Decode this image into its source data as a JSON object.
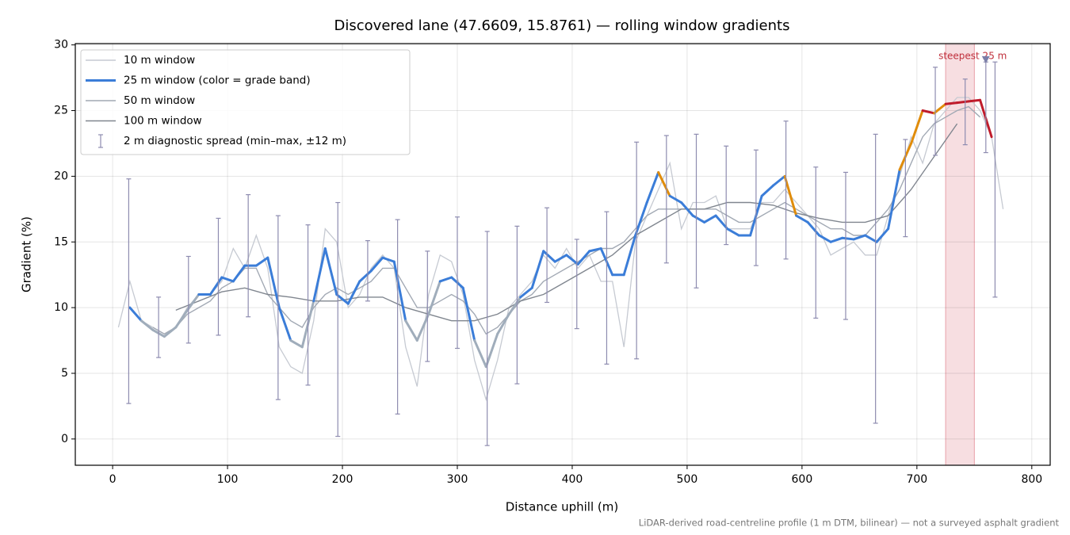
{
  "chart_data": {
    "type": "line",
    "title": "Discovered lane (47.6609, 15.8761) — rolling window gradients",
    "x_label": "Distance uphill (m)",
    "y_label": "Gradient (%)",
    "footnote": "LiDAR-derived road-centreline profile (1 m DTM, bilinear) — not a surveyed asphalt gradient",
    "xlim": [
      -32.5,
      816
    ],
    "ylim": [
      -2,
      30.1
    ],
    "xticks": [
      0,
      100,
      200,
      300,
      400,
      500,
      600,
      700,
      800
    ],
    "yticks": [
      0,
      5,
      10,
      15,
      20,
      25,
      30
    ],
    "grid": true,
    "legend": "upper left",
    "series": [
      {
        "name": "10 m window",
        "color": "#c6cad2",
        "x": [
          5,
          15,
          25,
          35,
          45,
          55,
          65,
          75,
          85,
          95,
          105,
          115,
          125,
          135,
          145,
          155,
          165,
          175,
          185,
          195,
          205,
          215,
          225,
          235,
          245,
          255,
          265,
          275,
          285,
          295,
          305,
          315,
          325,
          335,
          345,
          355,
          365,
          375,
          385,
          395,
          405,
          415,
          425,
          435,
          445,
          455,
          465,
          475,
          485,
          495,
          505,
          515,
          525,
          535,
          545,
          555,
          565,
          575,
          585,
          595,
          605,
          615,
          625,
          635,
          645,
          655,
          665,
          675,
          685,
          695,
          705,
          715,
          725,
          735,
          745,
          755,
          765,
          775
        ],
        "values": [
          8.5,
          12,
          9,
          8.5,
          8,
          8.5,
          10,
          11,
          11,
          12,
          14.5,
          13,
          15.5,
          13,
          7,
          5.5,
          5,
          9,
          16,
          15,
          10,
          11,
          13,
          14,
          13,
          7,
          4,
          11,
          14,
          13.5,
          11,
          6,
          3,
          6,
          10,
          11,
          12,
          14,
          13,
          14.5,
          13,
          14,
          12,
          12,
          7,
          15,
          17,
          19,
          21,
          16,
          18,
          18,
          18.5,
          16,
          16,
          16,
          18,
          18,
          19,
          18,
          17,
          16,
          14,
          14.5,
          15,
          14,
          14,
          17,
          20,
          23,
          21,
          24,
          25,
          26,
          26,
          25,
          23,
          17.5
        ]
      },
      {
        "name": "25 m window (color = grade band)",
        "color": "#3b7dd8",
        "x": [
          15,
          25,
          35,
          45,
          55,
          65,
          75,
          85,
          95,
          105,
          115,
          125,
          135,
          145,
          155,
          165,
          175,
          185,
          195,
          205,
          215,
          225,
          235,
          245,
          255,
          265,
          275,
          285,
          295,
          305,
          315,
          325,
          335,
          345,
          355,
          365,
          375,
          385,
          395,
          405,
          415,
          425,
          435,
          445,
          455,
          465,
          475,
          485,
          495,
          505,
          515,
          525,
          535,
          545,
          555,
          565,
          575,
          585,
          595,
          605,
          615,
          625,
          635,
          645,
          655,
          665,
          675,
          685,
          695,
          705,
          715,
          725,
          735,
          745,
          755,
          765
        ],
        "values": [
          10,
          9,
          8.3,
          7.8,
          8.5,
          9.8,
          11,
          11,
          12.3,
          12,
          13.2,
          13.2,
          13.8,
          10,
          7.5,
          7,
          10.5,
          14.5,
          11,
          10.3,
          12,
          12.8,
          13.8,
          13.5,
          9,
          7.5,
          9.5,
          12,
          12.3,
          11.5,
          7.5,
          5.5,
          8,
          9.5,
          10.8,
          11.5,
          14.3,
          13.5,
          14,
          13.3,
          14.3,
          14.5,
          12.5,
          12.5,
          15.5,
          18,
          20.3,
          18.5,
          18,
          17,
          16.5,
          17,
          16,
          15.5,
          15.5,
          18.5,
          19.3,
          20,
          17,
          16.5,
          15.5,
          15,
          15.3,
          15.2,
          15.5,
          15,
          16,
          20.5,
          22.5,
          25,
          24.8,
          25.5,
          25.6,
          25.7,
          25.8,
          23
        ],
        "colors": [
          "#3b7dd8",
          "#a0adbb",
          "#a0adbb",
          "#a0adbb",
          "#a0adbb",
          "#a0adbb",
          "#3b7dd8",
          "#3b7dd8",
          "#3b7dd8",
          "#3b7dd8",
          "#3b7dd8",
          "#3b7dd8",
          "#3b7dd8",
          "#3b7dd8",
          "#a0adbb",
          "#a0adbb",
          "#3b7dd8",
          "#3b7dd8",
          "#3b7dd8",
          "#3b7dd8",
          "#3b7dd8",
          "#3b7dd8",
          "#3b7dd8",
          "#3b7dd8",
          "#a0adbb",
          "#a0adbb",
          "#a0adbb",
          "#3b7dd8",
          "#3b7dd8",
          "#3b7dd8",
          "#a0adbb",
          "#a0adbb",
          "#a0adbb",
          "#a0adbb",
          "#3b7dd8",
          "#3b7dd8",
          "#3b7dd8",
          "#3b7dd8",
          "#3b7dd8",
          "#3b7dd8",
          "#3b7dd8",
          "#3b7dd8",
          "#3b7dd8",
          "#3b7dd8",
          "#3b7dd8",
          "#3b7dd8",
          "#e08c0a",
          "#3b7dd8",
          "#3b7dd8",
          "#3b7dd8",
          "#3b7dd8",
          "#3b7dd8",
          "#3b7dd8",
          "#3b7dd8",
          "#3b7dd8",
          "#3b7dd8",
          "#3b7dd8",
          "#e08c0a",
          "#3b7dd8",
          "#3b7dd8",
          "#3b7dd8",
          "#3b7dd8",
          "#3b7dd8",
          "#3b7dd8",
          "#3b7dd8",
          "#3b7dd8",
          "#3b7dd8",
          "#e08c0a",
          "#e08c0a",
          "#c01c2c",
          "#e08c0a",
          "#c01c2c",
          "#c01c2c",
          "#c01c2c",
          "#c01c2c",
          "#e08c0a"
        ]
      },
      {
        "name": "50 m window",
        "color": "#a2a9b4",
        "x": [
          35,
          45,
          55,
          65,
          75,
          85,
          95,
          105,
          115,
          125,
          135,
          145,
          155,
          165,
          175,
          185,
          195,
          205,
          215,
          225,
          235,
          245,
          255,
          265,
          275,
          285,
          295,
          305,
          315,
          325,
          335,
          345,
          355,
          365,
          375,
          385,
          395,
          405,
          415,
          425,
          435,
          445,
          455,
          465,
          475,
          485,
          495,
          505,
          515,
          525,
          535,
          545,
          555,
          565,
          575,
          585,
          595,
          605,
          615,
          625,
          635,
          645,
          655,
          665,
          675,
          685,
          695,
          705,
          715,
          725,
          735,
          745,
          755
        ],
        "values": [
          8.5,
          8,
          8.5,
          9.5,
          10,
          10.5,
          11.5,
          12,
          13,
          13,
          11,
          10,
          9,
          8.5,
          10,
          11,
          11.5,
          11,
          11.5,
          12,
          13,
          13,
          11.5,
          10,
          10,
          10.5,
          11,
          10.5,
          9.5,
          8,
          8.5,
          9.5,
          10.5,
          11,
          12,
          12.5,
          13,
          13.5,
          14,
          14.5,
          14.5,
          15,
          16,
          17,
          17.5,
          17.5,
          17.5,
          17.5,
          17.5,
          17.5,
          17,
          16.5,
          16.5,
          17,
          17.5,
          18,
          17.5,
          17,
          16.5,
          16,
          16,
          15.5,
          15.5,
          16.5,
          17.5,
          19,
          21,
          23,
          24,
          24.5,
          25,
          25.3,
          24.5
        ]
      },
      {
        "name": "100 m window",
        "color": "#80868f",
        "x": [
          55,
          75,
          95,
          115,
          135,
          155,
          175,
          195,
          215,
          235,
          255,
          275,
          295,
          315,
          335,
          355,
          375,
          395,
          415,
          435,
          455,
          475,
          495,
          515,
          535,
          555,
          575,
          595,
          615,
          635,
          655,
          675,
          695,
          715,
          735
        ],
        "values": [
          9.8,
          10.5,
          11.2,
          11.5,
          11,
          10.8,
          10.5,
          10.5,
          10.8,
          10.8,
          10,
          9.5,
          9,
          9,
          9.5,
          10.5,
          11,
          12,
          13,
          14,
          15.5,
          16.5,
          17.5,
          17.5,
          18,
          18,
          17.8,
          17.2,
          16.8,
          16.5,
          16.5,
          17,
          19,
          21.5,
          24
        ]
      }
    ],
    "errorbars": {
      "name": "2 m diagnostic spread (min–max, ±12 m)",
      "color": "#8e8cb0",
      "x": [
        14,
        40,
        66,
        92,
        118,
        144,
        170,
        196,
        222,
        248,
        274,
        300,
        326,
        352,
        378,
        404,
        430,
        456,
        482,
        508,
        534,
        560,
        586,
        612,
        638,
        664,
        690,
        716,
        742,
        760,
        768
      ],
      "low": [
        2.7,
        6.2,
        7.3,
        7.9,
        9.3,
        3.0,
        4.1,
        0.2,
        10.5,
        1.9,
        5.9,
        6.9,
        -0.5,
        4.2,
        10.4,
        8.4,
        5.7,
        6.1,
        13.4,
        11.5,
        14.8,
        13.2,
        13.7,
        9.2,
        9.1,
        1.2,
        15.4,
        21.6,
        22.4,
        21.8,
        10.8
      ],
      "high": [
        19.8,
        10.8,
        13.9,
        16.8,
        18.6,
        17.0,
        16.3,
        18.0,
        15.1,
        16.7,
        14.3,
        16.9,
        15.8,
        16.2,
        17.6,
        15.2,
        17.3,
        22.6,
        23.1,
        23.2,
        22.3,
        22.0,
        24.2,
        20.7,
        20.3,
        23.2,
        22.8,
        28.3,
        27.4,
        28.7,
        28.7
      ]
    },
    "highlight": {
      "label": "steepest 25 m",
      "span": [
        725,
        750
      ],
      "color": "#e8a0a8",
      "label_color": "#c0303c"
    },
    "marker": {
      "x": 760,
      "y": 28.9,
      "color": "#7a7ea8"
    }
  }
}
